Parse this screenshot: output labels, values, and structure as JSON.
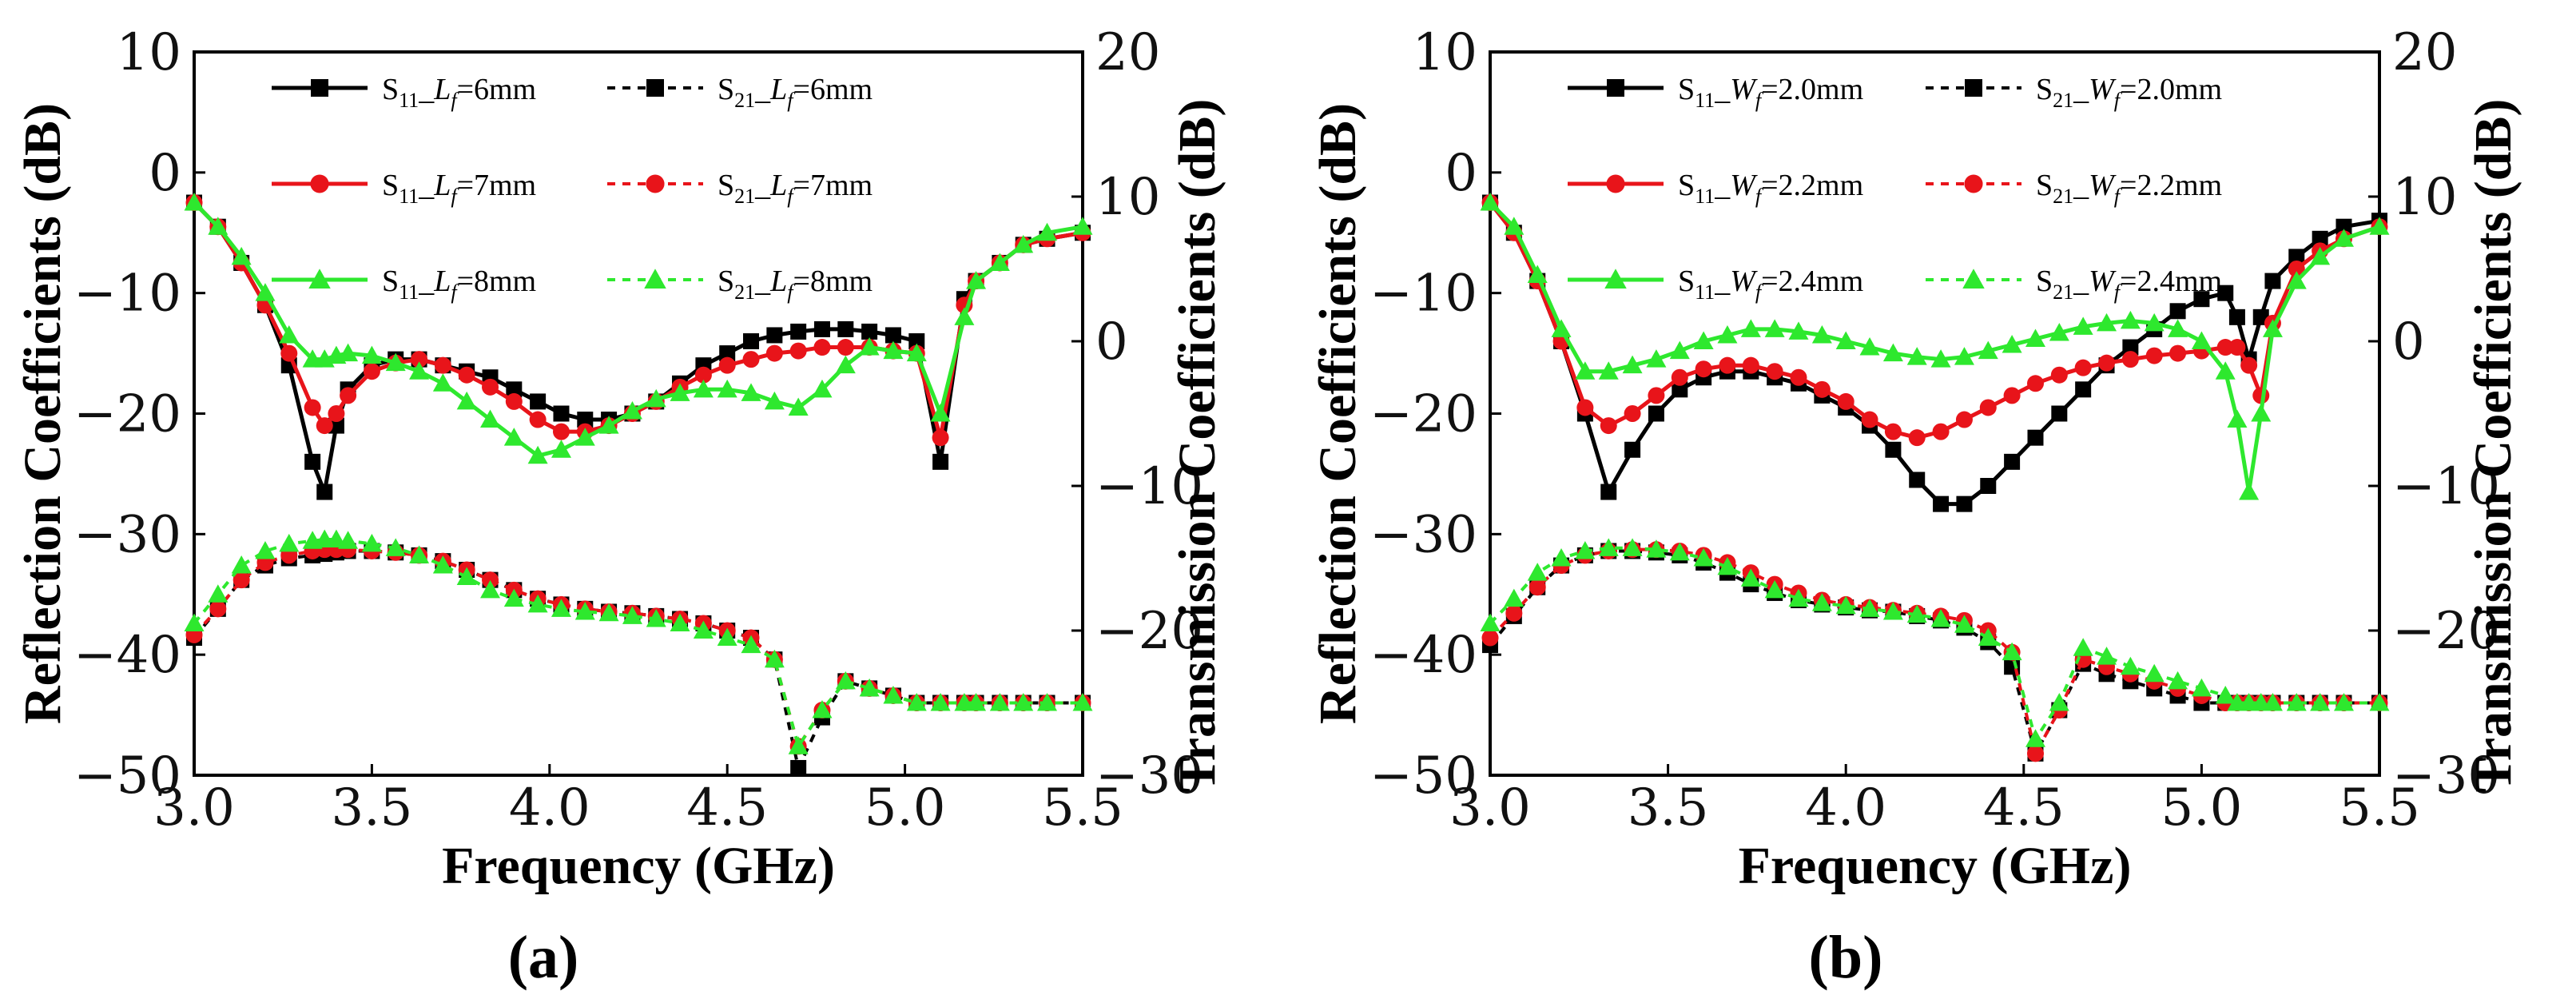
{
  "colors": {
    "Black": "#000000",
    "Red": "#e8141a",
    "Green": "#2ee82e"
  },
  "chart_data": [
    {
      "type": "line",
      "panel_label": "(a)",
      "xlabel": "Frequency (GHz)",
      "ylabel": "Reflection Coefficients (dB)",
      "y2label": "Transmission Coefficients (dB)",
      "xlim": [
        3.0,
        5.5
      ],
      "ylim": [
        -50,
        10
      ],
      "y2lim": [
        -30,
        20
      ],
      "xticks": [
        "3.0",
        "3.5",
        "4.0",
        "4.5",
        "5.0",
        "5.5"
      ],
      "yticks": [
        "10",
        "0",
        "−10",
        "−20",
        "−30",
        "−40",
        "−50"
      ],
      "y2ticks": [
        "20",
        "10",
        "0",
        "−10",
        "−20",
        "−30"
      ],
      "x": [
        3.0,
        3.067,
        3.133,
        3.2,
        3.267,
        3.333,
        3.367,
        3.4,
        3.433,
        3.5,
        3.567,
        3.633,
        3.7,
        3.767,
        3.833,
        3.9,
        3.967,
        4.033,
        4.1,
        4.167,
        4.233,
        4.3,
        4.367,
        4.433,
        4.5,
        4.567,
        4.633,
        4.7,
        4.767,
        4.833,
        4.9,
        4.967,
        5.033,
        5.1,
        5.167,
        5.2,
        5.267,
        5.333,
        5.4,
        5.5
      ],
      "legend": [
        {
          "param": "L",
          "series": "S",
          "sub": "11",
          "value": "=6mm"
        },
        {
          "param": "L",
          "series": "S",
          "sub": "21",
          "value": "=6mm"
        },
        {
          "param": "L",
          "series": "S",
          "sub": "11",
          "value": "=7mm"
        },
        {
          "param": "L",
          "series": "S",
          "sub": "21",
          "value": "=7mm"
        },
        {
          "param": "L",
          "series": "S",
          "sub": "11",
          "value": "=8mm"
        },
        {
          "param": "L",
          "series": "S",
          "sub": "21",
          "value": "=8mm"
        }
      ],
      "series": [
        {
          "name": "S11_Lf=6mm",
          "axis": "left",
          "color": "Black",
          "marker": "square",
          "dashed": false,
          "values": [
            -2.5,
            -4.5,
            -7.5,
            -11,
            -16,
            -24,
            -26.5,
            -21,
            -18,
            -16,
            -15.5,
            -15.5,
            -16,
            -16.5,
            -17,
            -18,
            -19,
            -20,
            -20.5,
            -20.5,
            -20,
            -19,
            -17.5,
            -16,
            -15,
            -14,
            -13.5,
            -13.2,
            -13,
            -13,
            -13.2,
            -13.5,
            -14,
            -24,
            -10.5,
            -9,
            -7.5,
            -6,
            -5.5,
            -5
          ]
        },
        {
          "name": "S21_Lf=6mm",
          "axis": "right",
          "color": "Black",
          "marker": "square",
          "dashed": true,
          "values": [
            -20.5,
            -18.5,
            -16.5,
            -15.5,
            -15,
            -14.8,
            -14.7,
            -14.6,
            -14.5,
            -14.5,
            -14.6,
            -14.8,
            -15.2,
            -15.8,
            -16.5,
            -17.2,
            -17.8,
            -18.2,
            -18.5,
            -18.7,
            -18.8,
            -19,
            -19.2,
            -19.5,
            -20,
            -20.5,
            -22,
            -29.5,
            -26,
            -23.5,
            -24,
            -24.5,
            -25,
            -25,
            -25,
            -25,
            -25,
            -25,
            -25,
            -25
          ]
        },
        {
          "name": "S11_Lf=7mm",
          "axis": "left",
          "color": "Red",
          "marker": "circle",
          "dashed": false,
          "values": [
            -2.5,
            -4.5,
            -7.5,
            -11,
            -15,
            -19.5,
            -21,
            -20,
            -18.5,
            -16.5,
            -15.8,
            -15.5,
            -16,
            -16.8,
            -17.8,
            -19,
            -20.5,
            -21.5,
            -21.5,
            -21,
            -20,
            -19,
            -17.8,
            -16.8,
            -16,
            -15.5,
            -15,
            -14.8,
            -14.5,
            -14.5,
            -14.5,
            -14.8,
            -15,
            -22,
            -11,
            -9,
            -7.5,
            -6,
            -5.5,
            -5
          ]
        },
        {
          "name": "S21_Lf=7mm",
          "axis": "right",
          "color": "Red",
          "marker": "circle",
          "dashed": true,
          "values": [
            -20.3,
            -18.5,
            -16.5,
            -15.3,
            -14.8,
            -14.5,
            -14.4,
            -14.4,
            -14.4,
            -14.5,
            -14.6,
            -14.8,
            -15.2,
            -15.8,
            -16.5,
            -17.2,
            -17.8,
            -18.2,
            -18.5,
            -18.7,
            -18.8,
            -19,
            -19.2,
            -19.5,
            -20,
            -20.5,
            -22,
            -28,
            -25.5,
            -23.5,
            -24,
            -24.5,
            -25,
            -25,
            -25,
            -25,
            -25,
            -25,
            -25,
            -25
          ]
        },
        {
          "name": "S11_Lf=8mm",
          "axis": "left",
          "color": "Green",
          "marker": "triangle",
          "dashed": false,
          "values": [
            -2.5,
            -4.5,
            -7,
            -10,
            -13.5,
            -15.5,
            -15.5,
            -15.2,
            -15,
            -15.2,
            -15.8,
            -16.5,
            -17.5,
            -19,
            -20.5,
            -22,
            -23.5,
            -23,
            -22,
            -21,
            -19.8,
            -18.8,
            -18.3,
            -18,
            -18,
            -18.3,
            -19,
            -19.5,
            -18,
            -16,
            -14.5,
            -14.8,
            -15,
            -20,
            -12,
            -9,
            -7.5,
            -6,
            -5,
            -4.5
          ]
        },
        {
          "name": "S21_Lf=8mm",
          "axis": "right",
          "color": "Green",
          "marker": "triangle",
          "dashed": true,
          "values": [
            -19.5,
            -17.5,
            -15.5,
            -14.5,
            -14,
            -13.8,
            -13.7,
            -13.7,
            -13.8,
            -14,
            -14.3,
            -14.8,
            -15.5,
            -16.3,
            -17.2,
            -17.8,
            -18.2,
            -18.5,
            -18.7,
            -18.8,
            -19,
            -19.2,
            -19.5,
            -20,
            -20.5,
            -21,
            -22,
            -28,
            -25.5,
            -23.5,
            -24,
            -24.5,
            -25,
            -25,
            -25,
            -25,
            -25,
            -25,
            -25,
            -25
          ]
        }
      ]
    },
    {
      "type": "line",
      "panel_label": "(b)",
      "xlabel": "Frequency (GHz)",
      "ylabel": "Reflection Coefficients (dB)",
      "y2label": "Transmission Coefficients (dB)",
      "xlim": [
        3.0,
        5.5
      ],
      "ylim": [
        -50,
        10
      ],
      "y2lim": [
        -30,
        20
      ],
      "xticks": [
        "3.0",
        "3.5",
        "4.0",
        "4.5",
        "5.0",
        "5.5"
      ],
      "yticks": [
        "10",
        "0",
        "−10",
        "−20",
        "−30",
        "−40",
        "−50"
      ],
      "y2ticks": [
        "20",
        "10",
        "0",
        "−10",
        "−20",
        "−30"
      ],
      "x": [
        3.0,
        3.067,
        3.133,
        3.2,
        3.267,
        3.333,
        3.4,
        3.467,
        3.533,
        3.6,
        3.667,
        3.733,
        3.8,
        3.867,
        3.933,
        4.0,
        4.067,
        4.133,
        4.2,
        4.267,
        4.333,
        4.4,
        4.467,
        4.533,
        4.6,
        4.667,
        4.733,
        4.8,
        4.867,
        4.933,
        5.0,
        5.067,
        5.1,
        5.133,
        5.167,
        5.2,
        5.267,
        5.333,
        5.4,
        5.5
      ],
      "legend": [
        {
          "param": "W",
          "series": "S",
          "sub": "11",
          "value": "=2.0mm"
        },
        {
          "param": "W",
          "series": "S",
          "sub": "21",
          "value": "=2.0mm"
        },
        {
          "param": "W",
          "series": "S",
          "sub": "11",
          "value": "=2.2mm"
        },
        {
          "param": "W",
          "series": "S",
          "sub": "21",
          "value": "=2.2mm"
        },
        {
          "param": "W",
          "series": "S",
          "sub": "11",
          "value": "=2.4mm"
        },
        {
          "param": "W",
          "series": "S",
          "sub": "21",
          "value": "=2.4mm"
        }
      ],
      "series": [
        {
          "name": "S11_Wf=2.0mm",
          "axis": "left",
          "color": "Black",
          "marker": "square",
          "dashed": false,
          "values": [
            -2.5,
            -5,
            -9,
            -14,
            -20,
            -26.5,
            -23,
            -20,
            -18,
            -17,
            -16.5,
            -16.5,
            -17,
            -17.5,
            -18.5,
            -19.5,
            -21,
            -23,
            -25.5,
            -27.5,
            -27.5,
            -26,
            -24,
            -22,
            -20,
            -18,
            -16,
            -14.5,
            -13,
            -11.5,
            -10.5,
            -10,
            -12,
            -15.5,
            -12,
            -9,
            -7,
            -5.5,
            -4.5,
            -4
          ]
        },
        {
          "name": "S21_Wf=2.0mm",
          "axis": "right",
          "color": "Black",
          "marker": "square",
          "dashed": true,
          "values": [
            -21,
            -19,
            -17,
            -15.5,
            -14.8,
            -14.5,
            -14.5,
            -14.6,
            -14.8,
            -15.3,
            -16,
            -16.8,
            -17.4,
            -17.9,
            -18.2,
            -18.4,
            -18.6,
            -18.7,
            -19,
            -19.3,
            -19.8,
            -20.8,
            -22.5,
            -28.5,
            -25.5,
            -22.3,
            -23,
            -23.5,
            -24,
            -24.5,
            -25,
            -25,
            -25,
            -25,
            -25,
            -25,
            -25,
            -25,
            -25,
            -25
          ]
        },
        {
          "name": "S11_Wf=2.2mm",
          "axis": "left",
          "color": "Red",
          "marker": "circle",
          "dashed": false,
          "values": [
            -2.5,
            -5,
            -9,
            -14,
            -19.5,
            -21,
            -20,
            -18.5,
            -17,
            -16.3,
            -16,
            -16,
            -16.5,
            -17,
            -18,
            -19,
            -20.5,
            -21.5,
            -22,
            -21.5,
            -20.5,
            -19.5,
            -18.5,
            -17.5,
            -16.8,
            -16.2,
            -15.8,
            -15.5,
            -15.2,
            -15,
            -14.8,
            -14.5,
            -14.5,
            -16,
            -18.5,
            -12.5,
            -8,
            -6.5,
            -5.5,
            -4.5
          ]
        },
        {
          "name": "S21_Wf=2.2mm",
          "axis": "right",
          "color": "Red",
          "marker": "circle",
          "dashed": true,
          "values": [
            -20.5,
            -18.8,
            -17,
            -15.5,
            -14.8,
            -14.5,
            -14.4,
            -14.4,
            -14.5,
            -14.8,
            -15.3,
            -16,
            -16.8,
            -17.4,
            -17.9,
            -18.2,
            -18.4,
            -18.6,
            -18.8,
            -19,
            -19.3,
            -20,
            -21.5,
            -28.5,
            -25.5,
            -22,
            -22.5,
            -23,
            -23.5,
            -24,
            -24.5,
            -25,
            -25,
            -25,
            -25,
            -25,
            -25,
            -25,
            -25,
            -25
          ]
        },
        {
          "name": "S11_Wf=2.4mm",
          "axis": "left",
          "color": "Green",
          "marker": "triangle",
          "dashed": false,
          "values": [
            -2.5,
            -4.5,
            -8.5,
            -13,
            -16.5,
            -16.5,
            -16,
            -15.5,
            -14.8,
            -14,
            -13.5,
            -13,
            -13,
            -13.2,
            -13.5,
            -14,
            -14.5,
            -15,
            -15.3,
            -15.5,
            -15.3,
            -14.8,
            -14.3,
            -13.8,
            -13.3,
            -12.8,
            -12.5,
            -12.3,
            -12.5,
            -13,
            -14,
            -16.5,
            -20.5,
            -26.5,
            -20,
            -13,
            -9,
            -7,
            -5.5,
            -4.5
          ]
        },
        {
          "name": "S21_Wf=2.4mm",
          "axis": "right",
          "color": "Green",
          "marker": "triangle",
          "dashed": true,
          "values": [
            -19.5,
            -17.8,
            -16,
            -15,
            -14.5,
            -14.3,
            -14.3,
            -14.4,
            -14.6,
            -15,
            -15.6,
            -16.4,
            -17.2,
            -17.8,
            -18.1,
            -18.3,
            -18.5,
            -18.7,
            -18.9,
            -19.2,
            -19.6,
            -20.5,
            -21.5,
            -27.5,
            -25,
            -21.2,
            -21.8,
            -22.5,
            -23,
            -23.5,
            -24,
            -24.5,
            -25,
            -25,
            -25,
            -25,
            -25,
            -25,
            -25,
            -25
          ]
        }
      ]
    }
  ]
}
